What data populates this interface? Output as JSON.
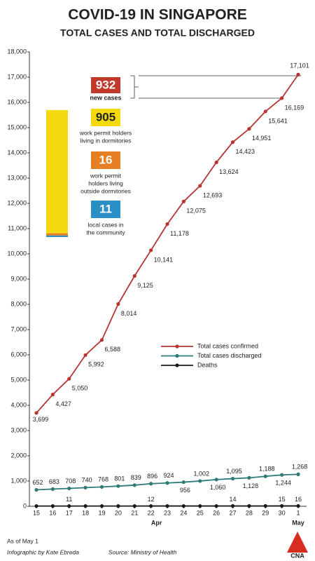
{
  "chart_data": {
    "type": "line",
    "title": "COVID-19 IN SINGAPORE",
    "subtitle": "TOTAL CASES AND TOTAL DISCHARGED",
    "categories": [
      "15",
      "16",
      "17",
      "18",
      "19",
      "20",
      "21",
      "22",
      "23",
      "24",
      "25",
      "26",
      "27",
      "28",
      "29",
      "30",
      "1"
    ],
    "month_labels": [
      "Apr",
      "May"
    ],
    "ylim": [
      0,
      18000
    ],
    "yticks": [
      0,
      {
        "value": 1000,
        "label": "1,000"
      },
      {
        "value": 2000,
        "label": "2,000"
      },
      {
        "value": 3000,
        "label": "3,000"
      },
      {
        "value": 4000,
        "label": "4,000"
      },
      {
        "value": 5000,
        "label": "5,000"
      },
      {
        "value": 6000,
        "label": "6,000"
      },
      {
        "value": 7000,
        "label": "7,000"
      },
      {
        "value": 8000,
        "label": "8,000"
      },
      {
        "value": 9000,
        "label": "9,000"
      },
      {
        "value": 10000,
        "label": "10,000"
      },
      {
        "value": 11000,
        "label": "11,000"
      },
      {
        "value": 12000,
        "label": "12,000"
      },
      {
        "value": 13000,
        "label": "13,000"
      },
      {
        "value": 14000,
        "label": "14,000"
      },
      {
        "value": 15000,
        "label": "15,000"
      },
      {
        "value": 16000,
        "label": "16,000"
      },
      {
        "value": 17000,
        "label": "17,000"
      },
      {
        "value": 18000,
        "label": "18,000"
      }
    ],
    "grid": false,
    "series": [
      {
        "name": "Total cases confirmed",
        "color": "#b8322f",
        "values": [
          3699,
          4427,
          5050,
          5992,
          6588,
          8014,
          9125,
          10141,
          11178,
          12075,
          12693,
          13624,
          14423,
          14951,
          15641,
          16169,
          17101
        ],
        "value_labels": [
          "3,699",
          "4,427",
          "5,050",
          "5,992",
          "6,588",
          "8,014",
          "9,125",
          "10,141",
          "11,178",
          "12,075",
          "12,693",
          "13,624",
          "14,423",
          "14,951",
          "15,641",
          "16,169",
          "17,101"
        ]
      },
      {
        "name": "Total cases discharged",
        "color": "#2d7a78",
        "values": [
          652,
          683,
          708,
          740,
          768,
          801,
          839,
          896,
          924,
          956,
          1002,
          1060,
          1095,
          1128,
          1188,
          1244,
          1268
        ],
        "value_labels": [
          "652",
          "683",
          "708",
          "740",
          "768",
          "801",
          "839",
          "896",
          "924",
          "956",
          "1,002",
          "1,060",
          "1,095",
          "1,128",
          "1,188",
          "1,244",
          "1,268"
        ]
      },
      {
        "name": "Deaths",
        "color": "#1a1a1a",
        "values": [
          10,
          11,
          11,
          11,
          11,
          11,
          11,
          12,
          12,
          12,
          12,
          12,
          14,
          14,
          14,
          15,
          16
        ],
        "value_labels": [
          null,
          null,
          "11",
          null,
          null,
          null,
          null,
          "12",
          null,
          null,
          null,
          null,
          "14",
          null,
          null,
          "15",
          "16"
        ]
      }
    ],
    "inset": {
      "new_cases": {
        "value": 932,
        "label": "new cases",
        "color": "#c0392b"
      },
      "breakdown": [
        {
          "value": 905,
          "label": [
            "work permit holders",
            "living in dormitories"
          ],
          "color": "#f5d90f"
        },
        {
          "value": 16,
          "label": [
            "work permit",
            "holders living",
            "outside dormitories"
          ],
          "color": "#e67e22"
        },
        {
          "value": 11,
          "label": [
            "local cases in",
            "the community"
          ],
          "color": "#2a8fc4"
        }
      ]
    },
    "footer": {
      "date": "As of May 1",
      "credit": "Infographic by Kate Ebreda",
      "source": "Source: Ministry of Health",
      "logo": "CNA"
    }
  }
}
